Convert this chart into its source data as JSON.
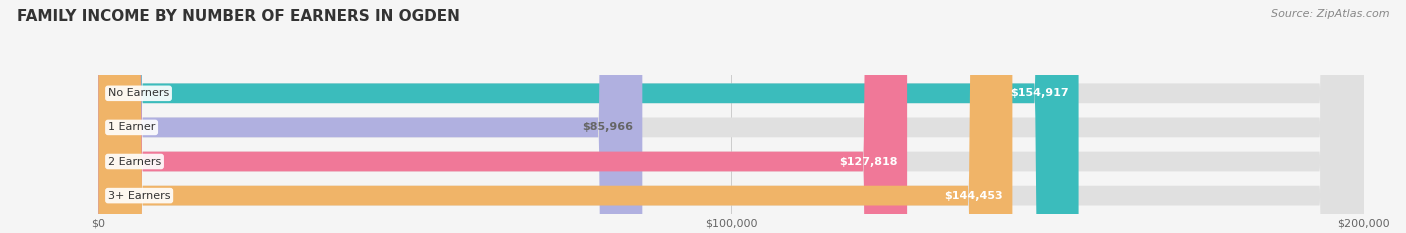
{
  "title": "FAMILY INCOME BY NUMBER OF EARNERS IN OGDEN",
  "source": "Source: ZipAtlas.com",
  "categories": [
    "No Earners",
    "1 Earner",
    "2 Earners",
    "3+ Earners"
  ],
  "values": [
    154917,
    85966,
    127818,
    144453
  ],
  "bar_colors": [
    "#3bbcbc",
    "#b0b0e0",
    "#f07898",
    "#f0b468"
  ],
  "label_colors": [
    "#ffffff",
    "#666666",
    "#ffffff",
    "#ffffff"
  ],
  "xlim": [
    0,
    200000
  ],
  "xticks": [
    0,
    100000,
    200000
  ],
  "xtick_labels": [
    "$0",
    "$100,000",
    "$200,000"
  ],
  "title_fontsize": 11,
  "source_fontsize": 8,
  "tick_fontsize": 8,
  "bar_label_fontsize": 8,
  "cat_label_fontsize": 8,
  "value_labels": [
    "$154,917",
    "$85,966",
    "$127,818",
    "$144,453"
  ],
  "fig_bg_color": "#f5f5f5",
  "bar_bg_color": "#e0e0e0",
  "bar_height": 0.58
}
